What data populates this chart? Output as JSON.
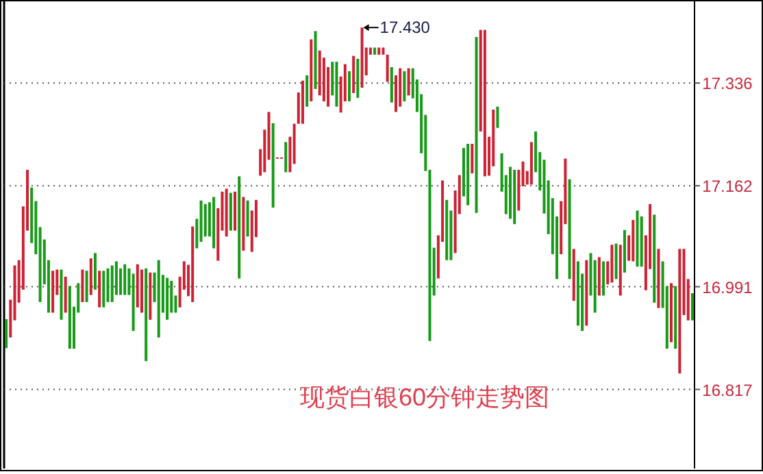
{
  "chart_data": {
    "type": "bar",
    "grid": "y",
    "ylim": [
      16.683,
      17.472
    ],
    "yticks": [
      16.817,
      16.991,
      17.162,
      17.336
    ],
    "annotations": [
      "17.430",
      "现货白银60分钟走势图"
    ],
    "categories": [
      null,
      null,
      null,
      null,
      null,
      null,
      null,
      null,
      null,
      null,
      null,
      null,
      null,
      null,
      null,
      null,
      null,
      null,
      null,
      null,
      null,
      null,
      null,
      null,
      null,
      null,
      null,
      null,
      null,
      null,
      null,
      null,
      null,
      null,
      null,
      null,
      null,
      null,
      null,
      null,
      null,
      null,
      null,
      null,
      null,
      null,
      null,
      null,
      null,
      null,
      null,
      null,
      null,
      null,
      null,
      null,
      null,
      null,
      null,
      null,
      null,
      null,
      null,
      null,
      null,
      null,
      null,
      null,
      null,
      null,
      null,
      null,
      null,
      null,
      null,
      null,
      null,
      null,
      null,
      null,
      null,
      null,
      null,
      null,
      null,
      null,
      null,
      null,
      null,
      null,
      null,
      null,
      null,
      null,
      null,
      null,
      null,
      null,
      null,
      null,
      null,
      null,
      null,
      null,
      null,
      null,
      null,
      null,
      null,
      null,
      null,
      null,
      null,
      null,
      null,
      null,
      null,
      null,
      null,
      null,
      null,
      null,
      null,
      null,
      null,
      null,
      null,
      null,
      null,
      null,
      null,
      null,
      null,
      null,
      null,
      null,
      null,
      null,
      null,
      null,
      null,
      null,
      null,
      null,
      null,
      null,
      null,
      null,
      null,
      null,
      null,
      null,
      null,
      null,
      null,
      null,
      null,
      null,
      null,
      null,
      null,
      null,
      null
    ],
    "base": [
      16.887,
      16.905,
      16.934,
      16.964,
      16.986,
      17.086,
      17.065,
      17.046,
      16.965,
      16.995,
      16.947,
      16.947,
      16.977,
      16.935,
      16.947,
      16.886,
      16.886,
      16.947,
      16.965,
      16.965,
      16.977,
      16.986,
      16.956,
      16.956,
      16.965,
      16.965,
      16.977,
      16.977,
      16.977,
      16.977,
      16.916,
      16.956,
      16.947,
      16.865,
      16.935,
      16.965,
      16.905,
      16.947,
      16.935,
      16.947,
      16.947,
      16.956,
      16.986,
      16.975,
      16.965,
      17.056,
      17.067,
      17.076,
      17.076,
      17.056,
      17.035,
      17.086,
      17.076,
      17.086,
      17.086,
      17.005,
      17.052,
      17.076,
      17.05,
      17.075,
      17.179,
      17.185,
      17.206,
      17.125,
      17.208,
      17.208,
      17.185,
      17.185,
      17.199,
      17.267,
      17.267,
      17.296,
      17.305,
      17.326,
      17.315,
      17.305,
      17.296,
      17.315,
      17.296,
      17.286,
      17.305,
      17.305,
      17.319,
      17.311,
      17.328,
      17.349,
      17.384,
      17.384,
      17.384,
      17.384,
      17.338,
      17.303,
      17.287,
      17.296,
      17.305,
      17.315,
      17.31,
      17.287,
      17.217,
      17.187,
      16.899,
      16.976,
      17.005,
      17.067,
      17.036,
      17.036,
      17.048,
      17.114,
      17.144,
      17.129,
      17.183,
      17.116,
      17.254,
      17.178,
      17.179,
      17.195,
      17.26,
      17.152,
      17.114,
      17.106,
      17.097,
      17.12,
      17.161,
      17.164,
      17.164,
      17.185,
      17.154,
      17.115,
      17.08,
      17.046,
      17.004,
      17.046,
      17.097,
      17.004,
      16.967,
      16.925,
      16.916,
      16.925,
      16.976,
      16.947,
      16.976,
      16.976,
      16.995,
      16.998,
      17.004,
      16.976,
      17.015,
      17.035,
      17.034,
      17.025,
      17.025,
      16.985,
      17.021,
      16.964,
      16.955,
      16.955,
      16.886,
      16.897,
      16.886,
      16.844,
      16.943,
      16.934,
      16.934
    ],
    "values": [
      0.049,
      0.064,
      0.093,
      0.072,
      0.141,
      0.103,
      0.094,
      0.09,
      0.127,
      0.076,
      0.089,
      0.071,
      0.043,
      0.085,
      0.061,
      0.106,
      0.071,
      0.05,
      0.055,
      0.053,
      0.062,
      0.062,
      0.062,
      0.062,
      0.057,
      0.062,
      0.057,
      0.045,
      0.052,
      0.045,
      0.097,
      0.073,
      0.073,
      0.157,
      0.08,
      0.05,
      0.131,
      0.064,
      0.071,
      0.054,
      0.029,
      0.052,
      0.048,
      0.053,
      0.128,
      0.05,
      0.07,
      0.055,
      0.058,
      0.087,
      0.089,
      0.066,
      0.081,
      0.064,
      0.066,
      0.173,
      0.091,
      0.061,
      0.07,
      0.063,
      0.045,
      0.072,
      0.081,
      0.143,
      0.002,
      0.002,
      0.051,
      0.06,
      0.068,
      0.053,
      0.073,
      0.053,
      0.105,
      0.098,
      0.076,
      0.074,
      0.067,
      0.057,
      0.076,
      0.061,
      0.063,
      0.051,
      0.063,
      0.066,
      0.102,
      0.047,
      0.012,
      0.012,
      0.012,
      0.012,
      0.046,
      0.06,
      0.062,
      0.065,
      0.051,
      0.046,
      0.051,
      0.055,
      0.1,
      0.095,
      0.29,
      0.081,
      0.073,
      0.104,
      0.102,
      0.084,
      0.106,
      0.066,
      0.082,
      0.104,
      0.05,
      0.298,
      0.172,
      0.248,
      0.066,
      0.096,
      0.036,
      0.065,
      0.066,
      0.088,
      0.092,
      0.069,
      0.042,
      0.023,
      0.072,
      0.069,
      0.065,
      0.091,
      0.091,
      0.095,
      0.106,
      0.09,
      0.111,
      0.169,
      0.088,
      0.109,
      0.097,
      0.111,
      0.072,
      0.089,
      0.065,
      0.058,
      0.039,
      0.064,
      0.06,
      0.086,
      0.072,
      0.043,
      0.07,
      0.095,
      0.085,
      0.093,
      0.11,
      0.149,
      0.1,
      0.079,
      0.106,
      0.1,
      0.106,
      0.211,
      0.112,
      0.07,
      0.046
    ],
    "colors": [
      "#189a18",
      "#cc2233",
      "#cc2233",
      "#cc2233",
      "#cc2233",
      "#cc2233",
      "#189a18",
      "#189a18",
      "#189a18",
      "#189a18",
      "#189a18",
      "#cc2233",
      "#cc2233",
      "#189a18",
      "#cc2233",
      "#189a18",
      "#189a18",
      "#189a18",
      "#cc2233",
      "#189a18",
      "#cc2233",
      "#189a18",
      "#cc2233",
      "#189a18",
      "#189a18",
      "#189a18",
      "#189a18",
      "#189a18",
      "#189a18",
      "#189a18",
      "#189a18",
      "#cc2233",
      "#cc2233",
      "#189a18",
      "#cc2233",
      "#189a18",
      "#189a18",
      "#189a18",
      "#189a18",
      "#189a18",
      "#189a18",
      "#cc2233",
      "#cc2233",
      "#cc2233",
      "#cc2233",
      "#189a18",
      "#189a18",
      "#189a18",
      "#189a18",
      "#189a18",
      "#cc2233",
      "#cc2233",
      "#cc2233",
      "#189a18",
      "#cc2233",
      "#189a18",
      "#cc2233",
      "#189a18",
      "#cc2233",
      "#cc2233",
      "#cc2233",
      "#cc2233",
      "#cc2233",
      "#189a18",
      "#cc2233",
      "#cc2233",
      "#189a18",
      "#cc2233",
      "#cc2233",
      "#cc2233",
      "#cc2233",
      "#189a18",
      "#cc2233",
      "#189a18",
      "#cc2233",
      "#cc2233",
      "#cc2233",
      "#189a18",
      "#189a18",
      "#cc2233",
      "#cc2233",
      "#189a18",
      "#cc2233",
      "#189a18",
      "#cc2233",
      "#cc2233",
      "#cc2233",
      "#189a18",
      "#cc2233",
      "#cc2233",
      "#cc2233",
      "#189a18",
      "#cc2233",
      "#cc2233",
      "#189a18",
      "#cc2233",
      "#189a18",
      "#189a18",
      "#189a18",
      "#189a18",
      "#189a18",
      "#189a18",
      "#cc2233",
      "#cc2233",
      "#189a18",
      "#189a18",
      "#cc2233",
      "#cc2233",
      "#189a18",
      "#189a18",
      "#cc2233",
      "#189a18",
      "#cc2233",
      "#cc2233",
      "#cc2233",
      "#cc2233",
      "#189a18",
      "#189a18",
      "#189a18",
      "#189a18",
      "#189a18",
      "#cc2233",
      "#cc2233",
      "#cc2233",
      "#cc2233",
      "#189a18",
      "#189a18",
      "#189a18",
      "#189a18",
      "#189a18",
      "#189a18",
      "#cc2233",
      "#cc2233",
      "#189a18",
      "#cc2233",
      "#189a18",
      "#189a18",
      "#cc2233",
      "#189a18",
      "#189a18",
      "#cc2233",
      "#189a18",
      "#cc2233",
      "#cc2233",
      "#189a18",
      "#cc2233",
      "#189a18",
      "#cc2233",
      "#cc2233",
      "#189a18",
      "#189a18",
      "#cc2233",
      "#cc2233",
      "#189a18",
      "#cc2233",
      "#189a18",
      "#189a18",
      "#cc2233",
      "#189a18",
      "#cc2233",
      "#cc2233",
      "#cc2233",
      "#189a18"
    ]
  }
}
